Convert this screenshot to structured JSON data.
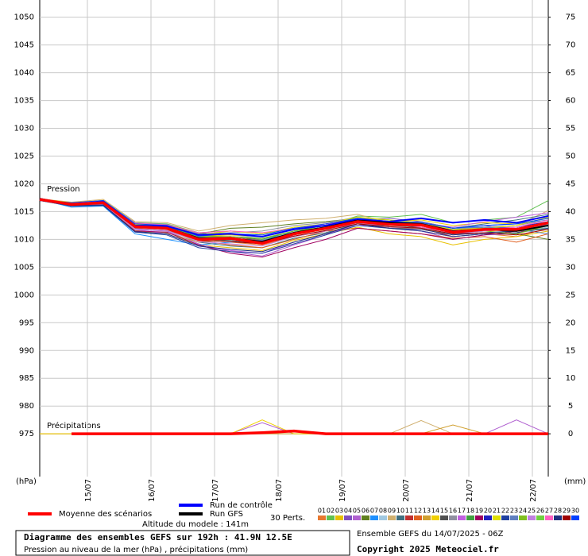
{
  "chart_data": {
    "type": "line",
    "title": "Diagramme des ensembles GEFS sur 192h : 41.9N 12.5E",
    "subtitle": "Pression au niveau de la mer (hPa) , précipitations (mm)",
    "run_info": "Ensemble GEFS du 14/07/2025 - 06Z",
    "copyright": "Copyright 2025 Meteociel.fr",
    "altitude": "Altitude du modele : 141m",
    "perts_label": "30 Perts.",
    "pressure_label": "Pression",
    "precip_label": "Précipitations",
    "y_label": "(hPa)",
    "y2_label": "(mm)",
    "x": [
      0,
      12,
      24,
      36,
      48,
      60,
      72,
      84,
      96,
      108,
      120,
      132,
      144,
      156,
      168,
      180,
      192
    ],
    "xlim": [
      0,
      192
    ],
    "xticks": [
      {
        "value": 18,
        "label": "15/07"
      },
      {
        "value": 42,
        "label": "16/07"
      },
      {
        "value": 66,
        "label": "17/07"
      },
      {
        "value": 90,
        "label": "18/07"
      },
      {
        "value": 114,
        "label": "19/07"
      },
      {
        "value": 138,
        "label": "20/07"
      },
      {
        "value": 162,
        "label": "21/07"
      },
      {
        "value": 186,
        "label": "22/07"
      }
    ],
    "ylim": [
      967.3,
      1053.1
    ],
    "yticks": [
      975,
      980,
      985,
      990,
      995,
      1000,
      1005,
      1010,
      1015,
      1020,
      1025,
      1030,
      1035,
      1040,
      1045,
      1050
    ],
    "y2lim": [
      -7.7,
      78.1
    ],
    "y2ticks": [
      0,
      5,
      10,
      15,
      20,
      25,
      30,
      35,
      40,
      45,
      50,
      55,
      60,
      65,
      70,
      75
    ],
    "grid": true,
    "series": [
      {
        "name": "01",
        "color": "#e87830",
        "values": [
          1017.0,
          1016.0,
          1016.8,
          1012.8,
          1012.5,
          1010.5,
          1009.5,
          1009.0,
          1010.5,
          1011.5,
          1013.0,
          1012.0,
          1011.5,
          1010.5,
          1011.0,
          1010.5,
          1012.0
        ]
      },
      {
        "name": "02",
        "color": "#60c050",
        "values": [
          1017.3,
          1016.5,
          1017.0,
          1013.0,
          1012.8,
          1011.2,
          1011.5,
          1011.0,
          1012.0,
          1012.5,
          1014.2,
          1014.0,
          1014.5,
          1013.0,
          1013.5,
          1014.0,
          1017.0
        ]
      },
      {
        "name": "03",
        "color": "#e8c000",
        "values": [
          1017.1,
          1016.2,
          1016.4,
          1011.5,
          1011.0,
          1009.0,
          1008.5,
          1008.0,
          1009.8,
          1011.0,
          1012.2,
          1011.0,
          1010.5,
          1009.0,
          1010.0,
          1010.5,
          1011.5
        ]
      },
      {
        "name": "04",
        "color": "#8050c0",
        "values": [
          1017.2,
          1016.6,
          1016.9,
          1012.5,
          1012.2,
          1010.8,
          1011.0,
          1010.5,
          1011.8,
          1012.8,
          1013.5,
          1013.8,
          1013.2,
          1012.0,
          1012.5,
          1011.5,
          1012.5
        ]
      },
      {
        "name": "05",
        "color": "#b060d0",
        "values": [
          1017.4,
          1016.3,
          1016.2,
          1011.8,
          1011.5,
          1009.2,
          1007.8,
          1007.0,
          1009.0,
          1010.8,
          1012.8,
          1012.2,
          1011.5,
          1010.0,
          1010.8,
          1011.0,
          1012.8
        ],
        "precip": [
          0,
          0,
          0,
          0,
          0,
          0,
          0,
          2.0,
          0,
          0,
          0,
          0,
          0,
          0,
          0,
          2.5,
          0
        ]
      },
      {
        "name": "06",
        "color": "#608020",
        "values": [
          1017.0,
          1016.1,
          1016.7,
          1012.9,
          1012.6,
          1011.0,
          1012.0,
          1012.2,
          1012.8,
          1013.2,
          1013.8,
          1013.5,
          1012.0,
          1011.5,
          1012.2,
          1011.0,
          1010.0
        ]
      },
      {
        "name": "07",
        "color": "#1e90ff",
        "values": [
          1017.2,
          1015.8,
          1016.0,
          1011.0,
          1010.0,
          1009.0,
          1009.5,
          1009.8,
          1011.5,
          1012.2,
          1013.0,
          1012.5,
          1012.8,
          1011.8,
          1012.5,
          1012.8,
          1013.5
        ]
      },
      {
        "name": "08",
        "color": "#a0c8e0",
        "values": [
          1017.1,
          1016.4,
          1016.5,
          1012.0,
          1012.0,
          1010.5,
          1010.8,
          1010.2,
          1011.2,
          1011.8,
          1012.5,
          1012.0,
          1012.2,
          1010.8,
          1011.2,
          1011.5,
          1012.2
        ]
      },
      {
        "name": "09",
        "color": "#d0b070",
        "values": [
          1017.3,
          1016.7,
          1017.2,
          1013.2,
          1013.0,
          1011.5,
          1012.5,
          1013.0,
          1013.5,
          1013.8,
          1014.5,
          1013.0,
          1012.5,
          1011.5,
          1012.0,
          1012.5,
          1015.2
        ],
        "precip": [
          0,
          0,
          0,
          0,
          0,
          0,
          0,
          0,
          0,
          0,
          0,
          0,
          2.4,
          0,
          0,
          0,
          0
        ]
      },
      {
        "name": "10",
        "color": "#407080",
        "values": [
          1017.2,
          1016.2,
          1016.4,
          1012.2,
          1011.8,
          1009.5,
          1008.8,
          1008.5,
          1010.2,
          1011.2,
          1012.8,
          1012.5,
          1013.0,
          1012.0,
          1012.8,
          1013.5,
          1014.5
        ]
      },
      {
        "name": "11",
        "color": "#c03030",
        "values": [
          1017.0,
          1016.3,
          1016.8,
          1012.6,
          1012.3,
          1010.2,
          1010.5,
          1009.8,
          1011.0,
          1012.0,
          1013.5,
          1012.8,
          1012.0,
          1010.5,
          1011.0,
          1011.2,
          1012.5
        ]
      },
      {
        "name": "12",
        "color": "#e06020",
        "values": [
          1017.3,
          1016.5,
          1016.6,
          1012.0,
          1011.6,
          1009.8,
          1009.0,
          1008.5,
          1010.0,
          1011.5,
          1012.0,
          1011.5,
          1011.0,
          1010.2,
          1010.5,
          1009.5,
          1011.0
        ]
      },
      {
        "name": "13",
        "color": "#d0a030",
        "values": [
          1017.1,
          1016.0,
          1016.3,
          1011.6,
          1011.2,
          1009.5,
          1010.0,
          1009.5,
          1010.8,
          1011.8,
          1013.0,
          1012.2,
          1011.8,
          1011.0,
          1011.5,
          1011.8,
          1013.2
        ],
        "precip": [
          0,
          0,
          0,
          0,
          0,
          0,
          0,
          0,
          0,
          0,
          0,
          0,
          0,
          1.6,
          0,
          0,
          0
        ]
      },
      {
        "name": "14",
        "color": "#f0d000",
        "values": [
          1017.2,
          1016.6,
          1017.0,
          1012.8,
          1012.4,
          1010.6,
          1010.8,
          1010.5,
          1011.8,
          1012.5,
          1013.6,
          1013.2,
          1013.5,
          1012.5,
          1013.0,
          1012.8,
          1013.8
        ],
        "precip": [
          0,
          0,
          0,
          0,
          0,
          0,
          0,
          2.5,
          0,
          0,
          0,
          0,
          0,
          0,
          0,
          0,
          0
        ]
      },
      {
        "name": "15",
        "color": "#505050",
        "values": [
          1017.4,
          1016.4,
          1016.5,
          1012.3,
          1012.1,
          1010.0,
          1009.8,
          1009.2,
          1010.8,
          1012.0,
          1013.2,
          1012.5,
          1012.2,
          1011.2,
          1011.8,
          1012.0,
          1012.8
        ]
      },
      {
        "name": "16",
        "color": "#9090a0",
        "values": [
          1017.0,
          1016.2,
          1016.9,
          1013.0,
          1012.7,
          1011.0,
          1011.2,
          1011.5,
          1012.5,
          1013.0,
          1014.0,
          1013.2,
          1012.8,
          1011.8,
          1012.2,
          1012.5,
          1013.5
        ]
      },
      {
        "name": "17",
        "color": "#c060e0",
        "values": [
          1017.2,
          1016.5,
          1016.4,
          1011.8,
          1011.0,
          1008.8,
          1008.0,
          1007.5,
          1009.5,
          1011.0,
          1012.5,
          1012.8,
          1013.0,
          1012.2,
          1013.2,
          1014.0,
          1014.8
        ]
      },
      {
        "name": "18",
        "color": "#40a040",
        "values": [
          1017.3,
          1016.3,
          1016.7,
          1012.5,
          1012.3,
          1010.4,
          1010.5,
          1010.0,
          1011.5,
          1012.2,
          1013.4,
          1012.6,
          1012.5,
          1011.5,
          1011.8,
          1011.5,
          1012.0
        ]
      },
      {
        "name": "19",
        "color": "#a00060",
        "values": [
          1017.1,
          1016.1,
          1016.2,
          1011.5,
          1011.3,
          1009.0,
          1007.5,
          1006.8,
          1008.5,
          1010.0,
          1012.0,
          1011.5,
          1011.0,
          1010.0,
          1010.8,
          1011.5,
          1013.0
        ]
      },
      {
        "name": "20",
        "color": "#2020c0",
        "values": [
          1017.2,
          1016.4,
          1016.6,
          1012.1,
          1012.0,
          1010.2,
          1010.0,
          1009.5,
          1011.0,
          1012.2,
          1013.5,
          1013.0,
          1012.8,
          1011.5,
          1012.0,
          1012.2,
          1013.2
        ]
      },
      {
        "name": "21",
        "color": "#e0e000",
        "values": [
          1017.3,
          1016.6,
          1016.9,
          1012.7,
          1012.5,
          1010.8,
          1011.5,
          1011.0,
          1012.2,
          1012.8,
          1014.0,
          1013.5,
          1013.0,
          1011.8,
          1012.0,
          1012.5,
          1014.0
        ]
      },
      {
        "name": "22",
        "color": "#2040a0",
        "values": [
          1017.0,
          1016.0,
          1016.1,
          1011.3,
          1010.8,
          1008.5,
          1007.8,
          1007.5,
          1009.2,
          1010.8,
          1012.5,
          1012.0,
          1011.5,
          1010.5,
          1011.0,
          1011.2,
          1012.0
        ]
      },
      {
        "name": "23",
        "color": "#6080c0",
        "values": [
          1017.2,
          1016.3,
          1016.5,
          1012.4,
          1012.2,
          1010.3,
          1010.2,
          1009.8,
          1011.2,
          1012.0,
          1013.2,
          1012.8,
          1013.2,
          1012.0,
          1012.2,
          1011.8,
          1011.0
        ]
      },
      {
        "name": "24",
        "color": "#80c020",
        "values": [
          1017.1,
          1016.5,
          1016.8,
          1012.6,
          1012.4,
          1010.6,
          1010.5,
          1010.2,
          1011.5,
          1012.5,
          1013.8,
          1013.0,
          1012.5,
          1011.2,
          1011.5,
          1011.0,
          1012.5
        ]
      },
      {
        "name": "25",
        "color": "#c080e0",
        "values": [
          1017.3,
          1016.2,
          1016.3,
          1011.9,
          1011.6,
          1009.6,
          1009.2,
          1008.8,
          1010.5,
          1011.5,
          1013.0,
          1012.2,
          1012.0,
          1011.0,
          1011.5,
          1012.0,
          1013.0
        ]
      },
      {
        "name": "26",
        "color": "#70d040",
        "values": [
          1017.2,
          1016.4,
          1016.6,
          1012.2,
          1012.0,
          1010.0,
          1010.2,
          1009.5,
          1011.0,
          1012.0,
          1013.2,
          1012.5,
          1012.5,
          1011.5,
          1012.0,
          1011.8,
          1012.8
        ]
      },
      {
        "name": "27",
        "color": "#ff60c0",
        "values": [
          1017.0,
          1016.5,
          1016.9,
          1012.9,
          1012.6,
          1011.2,
          1011.5,
          1011.2,
          1012.0,
          1012.8,
          1013.5,
          1013.0,
          1012.2,
          1011.2,
          1011.8,
          1012.2,
          1013.5
        ]
      },
      {
        "name": "28",
        "color": "#203080",
        "values": [
          1017.4,
          1016.1,
          1016.2,
          1011.4,
          1011.0,
          1008.8,
          1008.2,
          1007.8,
          1009.5,
          1011.0,
          1012.8,
          1012.0,
          1011.8,
          1010.8,
          1011.2,
          1011.5,
          1012.5
        ]
      },
      {
        "name": "29",
        "color": "#a00000",
        "values": [
          1017.2,
          1016.3,
          1016.5,
          1012.2,
          1011.9,
          1009.8,
          1009.6,
          1009.2,
          1010.6,
          1011.6,
          1012.8,
          1012.3,
          1012.0,
          1011.0,
          1011.2,
          1010.8,
          1011.8
        ]
      },
      {
        "name": "30",
        "color": "#0040ff",
        "values": [
          1017.1,
          1016.6,
          1017.0,
          1012.8,
          1012.5,
          1010.6,
          1011.0,
          1010.8,
          1012.0,
          1012.8,
          1013.8,
          1013.2,
          1013.0,
          1012.0,
          1012.5,
          1012.8,
          1013.8
        ]
      },
      {
        "name": "Run de contrôle",
        "color": "#0000ff",
        "values": [
          1017.2,
          1016.3,
          1016.8,
          1012.5,
          1012.4,
          1010.8,
          1011.0,
          1010.5,
          1011.8,
          1012.5,
          1013.6,
          1013.2,
          1013.8,
          1013.0,
          1013.5,
          1013.0,
          1014.2
        ]
      },
      {
        "name": "Run GFS",
        "color": "#000000",
        "values": [
          1017.2,
          1016.2,
          1016.6,
          1012.2,
          1012.1,
          1010.2,
          1010.2,
          1009.6,
          1011.2,
          1012.2,
          1013.4,
          1013.0,
          1012.8,
          1011.5,
          1011.8,
          1011.5,
          1012.5
        ]
      },
      {
        "name": "Moyenne des scénarios",
        "color": "#ff0000",
        "values": [
          1017.2,
          1016.3,
          1016.6,
          1012.3,
          1012.0,
          1010.0,
          1010.2,
          1009.3,
          1011.0,
          1012.0,
          1013.2,
          1012.7,
          1012.6,
          1011.3,
          1011.8,
          1011.8,
          1013.0
        ],
        "precip": [
          null,
          0,
          0,
          0,
          0,
          0,
          0,
          0.2,
          0.5,
          0,
          0,
          0,
          0,
          0,
          0,
          0,
          0
        ]
      }
    ]
  }
}
